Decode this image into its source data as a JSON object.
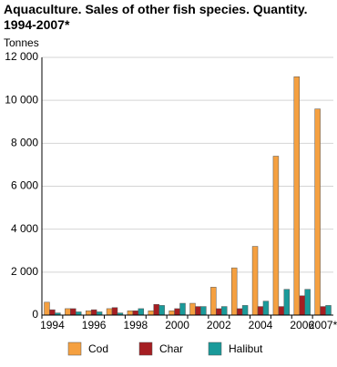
{
  "chart_data": {
    "type": "bar",
    "title": "Aquaculture. Sales of other fish species. Quantity. 1994-2007*",
    "y_label": "Tonnes",
    "categories": [
      "1994",
      null,
      "1996",
      null,
      "1998",
      null,
      "2000",
      null,
      "2002",
      null,
      "2004",
      null,
      "2006",
      "2007*"
    ],
    "series": [
      {
        "name": "Cod",
        "color": "#f5a040",
        "values": [
          600,
          300,
          200,
          300,
          200,
          200,
          200,
          550,
          1300,
          2200,
          3200,
          7400,
          11100,
          9600
        ]
      },
      {
        "name": "Char",
        "color": "#a51e22",
        "values": [
          250,
          300,
          250,
          350,
          200,
          500,
          300,
          400,
          300,
          300,
          400,
          400,
          900,
          400
        ]
      },
      {
        "name": "Halibut",
        "color": "#1a9a9a",
        "values": [
          100,
          150,
          150,
          100,
          300,
          450,
          550,
          400,
          400,
          450,
          650,
          1200,
          1200,
          450
        ]
      }
    ],
    "ylim": [
      0,
      12000
    ],
    "yticks": [
      0,
      {
        "value": 2000,
        "label": "2 000"
      },
      {
        "value": 4000,
        "label": "4 000"
      },
      {
        "value": 6000,
        "label": "6 000"
      },
      {
        "value": 8000,
        "label": "8 000"
      },
      {
        "value": 10000,
        "label": "10 000"
      },
      {
        "value": 12000,
        "label": "12 000"
      }
    ],
    "grid": true,
    "legend": "bottom"
  }
}
